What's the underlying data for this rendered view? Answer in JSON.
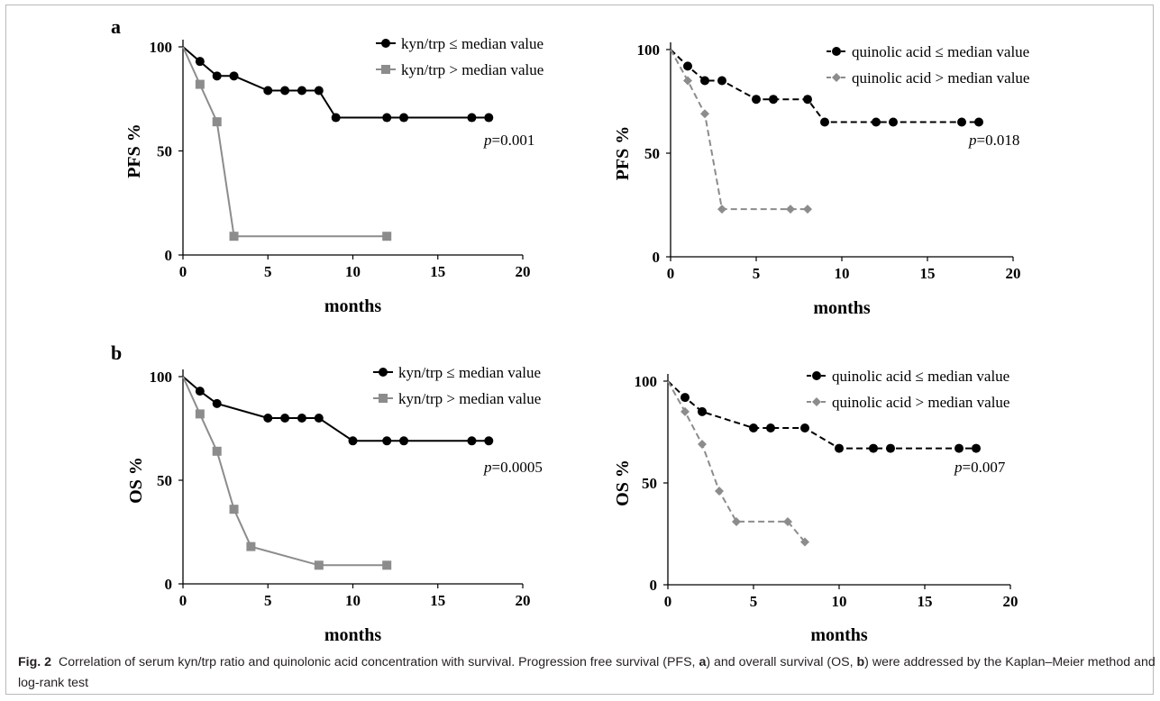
{
  "figure": {
    "panel_a_label": "a",
    "panel_b_label": "b",
    "caption": {
      "fig_label": "Fig. 2",
      "text_1": "Correlation of serum kyn/trp ratio and quinolonic acid concentration with survival. Progression free survival (PFS, ",
      "bold_a": "a",
      "text_2": ") and overall survival (OS, ",
      "bold_b": "b",
      "text_3": ") were addressed by the Kaplan–Meier method and log-rank test"
    }
  },
  "chart_data": [
    {
      "type": "line",
      "id": "a-left",
      "xlabel": "months",
      "ylabel": "PFS %",
      "xlim": [
        0,
        20
      ],
      "ylim": [
        0,
        100
      ],
      "xticks": [
        0,
        5,
        10,
        15,
        20
      ],
      "yticks": [
        0,
        50,
        100
      ],
      "grid": false,
      "legend_position": "top-right",
      "annotation": {
        "p": "p",
        "value": "=0.001"
      },
      "series": [
        {
          "name": "kyn/trp ≤ median value",
          "color": "#000000",
          "marker": "circle",
          "dash": "solid",
          "x": [
            0,
            1,
            2,
            3,
            5,
            6,
            7,
            8,
            9,
            12,
            13,
            17,
            18
          ],
          "y": [
            100,
            93,
            86,
            86,
            79,
            79,
            79,
            79,
            66,
            66,
            66,
            66,
            66
          ]
        },
        {
          "name": "kyn/trp > median value",
          "color": "#8c8c8c",
          "marker": "square",
          "dash": "solid",
          "x": [
            0,
            1,
            2,
            3,
            12
          ],
          "y": [
            100,
            82,
            64,
            9,
            9
          ]
        }
      ]
    },
    {
      "type": "line",
      "id": "a-right",
      "xlabel": "months",
      "ylabel": "PFS %",
      "xlim": [
        0,
        20
      ],
      "ylim": [
        0,
        100
      ],
      "xticks": [
        0,
        5,
        10,
        15,
        20
      ],
      "yticks": [
        0,
        50,
        100
      ],
      "grid": false,
      "legend_position": "top-right",
      "annotation": {
        "p": "p",
        "value": "=0.018"
      },
      "series": [
        {
          "name": "quinolic acid ≤ median value",
          "color": "#000000",
          "marker": "circle",
          "dash": "dashed",
          "x": [
            0,
            1,
            2,
            3,
            5,
            6,
            8,
            9,
            12,
            13,
            17,
            18
          ],
          "y": [
            100,
            92,
            85,
            85,
            76,
            76,
            76,
            65,
            65,
            65,
            65,
            65
          ]
        },
        {
          "name": "quinolic acid > median value",
          "color": "#8c8c8c",
          "marker": "diamond",
          "dash": "dashed",
          "x": [
            0,
            1,
            2,
            3,
            7,
            8
          ],
          "y": [
            100,
            85,
            69,
            23,
            23,
            23
          ]
        }
      ]
    },
    {
      "type": "line",
      "id": "b-left",
      "xlabel": "months",
      "ylabel": "OS %",
      "xlim": [
        0,
        20
      ],
      "ylim": [
        0,
        100
      ],
      "xticks": [
        0,
        5,
        10,
        15,
        20
      ],
      "yticks": [
        0,
        50,
        100
      ],
      "grid": false,
      "legend_position": "top-right",
      "annotation": {
        "p": "p",
        "value": "=0.0005"
      },
      "series": [
        {
          "name": "kyn/trp ≤ median value",
          "color": "#000000",
          "marker": "circle",
          "dash": "solid",
          "x": [
            0,
            1,
            2,
            5,
            6,
            7,
            8,
            10,
            12,
            13,
            17,
            18
          ],
          "y": [
            100,
            93,
            87,
            80,
            80,
            80,
            80,
            69,
            69,
            69,
            69,
            69
          ]
        },
        {
          "name": "kyn/trp > median value",
          "color": "#8c8c8c",
          "marker": "square",
          "dash": "solid",
          "x": [
            0,
            1,
            2,
            3,
            4,
            8,
            12
          ],
          "y": [
            100,
            82,
            64,
            36,
            18,
            9,
            9
          ]
        }
      ]
    },
    {
      "type": "line",
      "id": "b-right",
      "xlabel": "months",
      "ylabel": "OS %",
      "xlim": [
        0,
        20
      ],
      "ylim": [
        0,
        100
      ],
      "xticks": [
        0,
        5,
        10,
        15,
        20
      ],
      "yticks": [
        0,
        50,
        100
      ],
      "grid": false,
      "legend_position": "top-right",
      "annotation": {
        "p": "p",
        "value": "=0.007"
      },
      "series": [
        {
          "name": "quinolic acid ≤ median value",
          "color": "#000000",
          "marker": "circle",
          "dash": "dashed",
          "x": [
            0,
            1,
            2,
            5,
            6,
            8,
            10,
            12,
            13,
            17,
            18
          ],
          "y": [
            100,
            92,
            85,
            77,
            77,
            77,
            67,
            67,
            67,
            67,
            67
          ]
        },
        {
          "name": "quinolic acid > median value",
          "color": "#8c8c8c",
          "marker": "diamond",
          "dash": "dashed",
          "x": [
            0,
            1,
            2,
            3,
            4,
            7,
            8
          ],
          "y": [
            100,
            85,
            69,
            46,
            31,
            31,
            21
          ]
        }
      ]
    }
  ]
}
